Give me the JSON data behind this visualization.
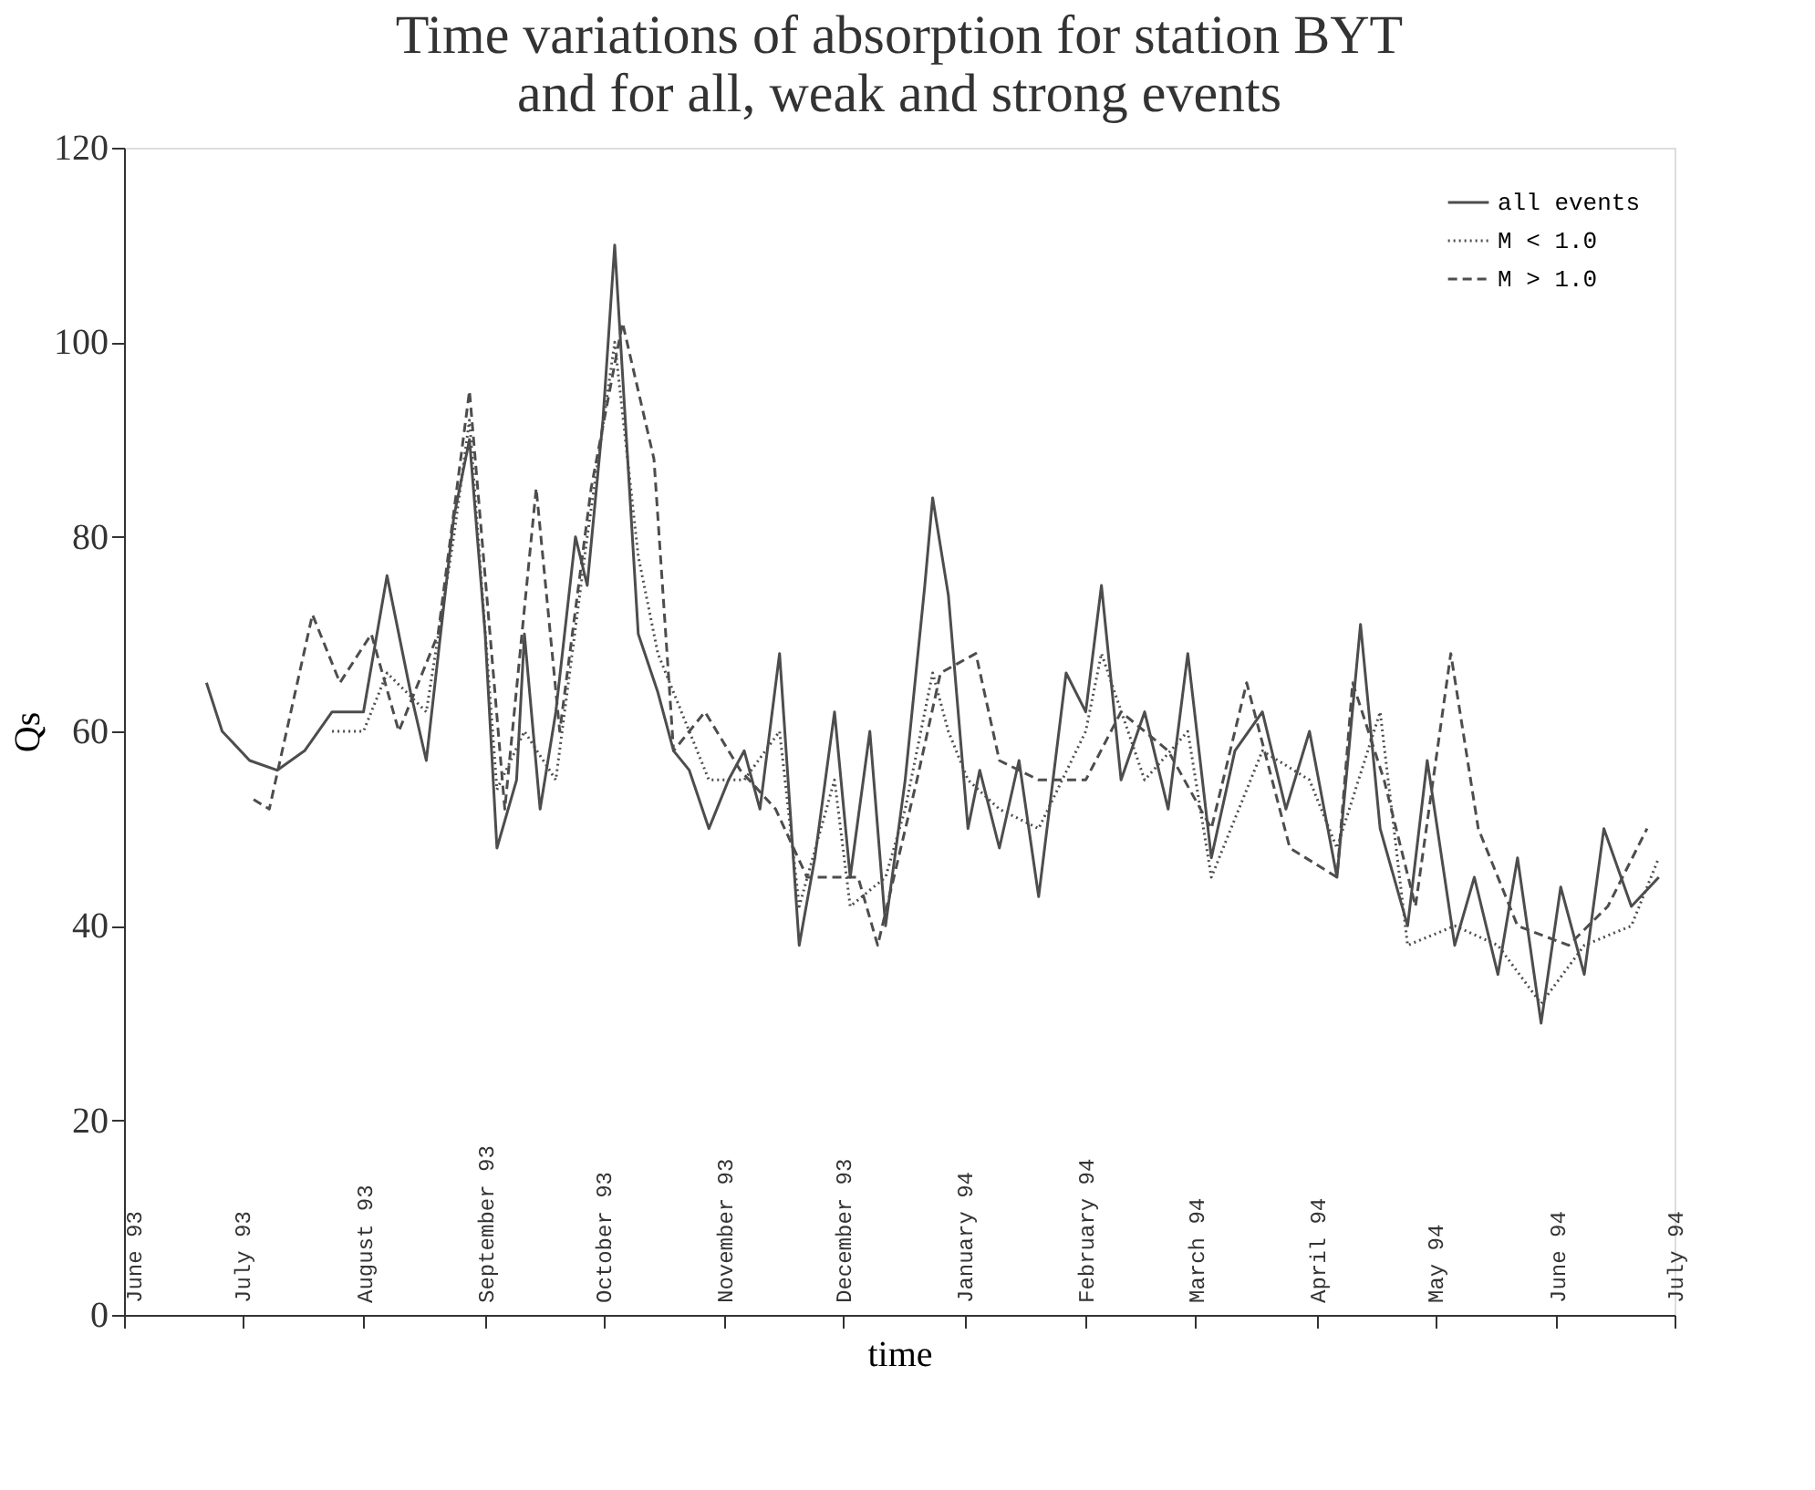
{
  "chart_data": {
    "type": "line",
    "title": "Time variations of absorption for station BYT\nand for all, weak and strong events",
    "xlabel": "time",
    "ylabel": "Qs",
    "xlim": [
      "1993-06-01",
      "1994-07-01"
    ],
    "xticks": [
      {
        "value": "1993-06-01",
        "label": "June 93"
      },
      {
        "value": "1993-07-01",
        "label": "July 93"
      },
      {
        "value": "1993-08-01",
        "label": "August 93"
      },
      {
        "value": "1993-09-01",
        "label": "September 93"
      },
      {
        "value": "1993-10-01",
        "label": "October 93"
      },
      {
        "value": "1993-11-01",
        "label": "November 93"
      },
      {
        "value": "1993-12-01",
        "label": "December 93"
      },
      {
        "value": "1994-01-01",
        "label": "January 94"
      },
      {
        "value": "1994-02-01",
        "label": "February 94"
      },
      {
        "value": "1994-03-01",
        "label": "March 94"
      },
      {
        "value": "1994-04-01",
        "label": "April 94"
      },
      {
        "value": "1994-05-01",
        "label": "May 94"
      },
      {
        "value": "1994-06-01",
        "label": "June 94"
      },
      {
        "value": "1994-07-01",
        "label": "July 94"
      }
    ],
    "ylim": [
      0,
      120
    ],
    "yticks": [
      0,
      20,
      40,
      60,
      80,
      100,
      120
    ],
    "grid": false,
    "legend": "top right",
    "marker": "none",
    "series": [
      {
        "name": "all events",
        "color": "#4d4d4d",
        "line_style": "solid",
        "x": [
          "1993-06-22",
          "1993-06-26",
          "1993-07-03",
          "1993-07-10",
          "1993-07-17",
          "1993-07-24",
          "1993-08-01",
          "1993-08-07",
          "1993-08-13",
          "1993-08-17",
          "1993-08-24",
          "1993-08-28",
          "1993-09-01",
          "1993-09-04",
          "1993-09-09",
          "1993-09-11",
          "1993-09-15",
          "1993-09-19",
          "1993-09-24",
          "1993-09-27",
          "1993-10-01",
          "1993-10-04",
          "1993-10-07",
          "1993-10-10",
          "1993-10-15",
          "1993-10-19",
          "1993-10-23",
          "1993-10-28",
          "1993-11-02",
          "1993-11-06",
          "1993-11-10",
          "1993-11-15",
          "1993-11-20",
          "1993-11-24",
          "1993-11-29",
          "1993-12-03",
          "1993-12-08",
          "1993-12-12",
          "1993-12-17",
          "1993-12-22",
          "1993-12-24",
          "1993-12-28",
          "1994-01-02",
          "1994-01-05",
          "1994-01-10",
          "1994-01-15",
          "1994-01-20",
          "1994-01-27",
          "1994-02-01",
          "1994-02-05",
          "1994-02-10",
          "1994-02-16",
          "1994-02-22",
          "1994-02-27",
          "1994-03-05",
          "1994-03-11",
          "1994-03-18",
          "1994-03-24",
          "1994-03-30",
          "1994-04-06",
          "1994-04-12",
          "1994-04-17",
          "1994-04-24",
          "1994-04-29",
          "1994-05-06",
          "1994-05-11",
          "1994-05-17",
          "1994-05-22",
          "1994-05-28",
          "1994-06-02",
          "1994-06-08",
          "1994-06-13",
          "1994-06-20",
          "1994-06-27"
        ],
        "values": [
          65,
          60,
          57,
          56,
          58,
          62,
          62,
          76,
          64,
          57,
          82,
          90,
          70,
          48,
          55,
          70,
          52,
          62,
          80,
          75,
          92,
          110,
          90,
          70,
          64,
          58,
          56,
          50,
          55,
          58,
          52,
          68,
          38,
          47,
          62,
          45,
          60,
          40,
          55,
          75,
          84,
          74,
          50,
          56,
          48,
          57,
          43,
          66,
          62,
          75,
          55,
          62,
          52,
          68,
          47,
          58,
          62,
          52,
          60,
          45,
          71,
          50,
          40,
          57,
          38,
          45,
          35,
          47,
          30,
          44,
          35,
          50,
          42,
          45
        ]
      },
      {
        "name": "M < 1.0",
        "color": "#4d4d4d",
        "line_style": "dotted",
        "x": [
          "1993-07-24",
          "1993-08-01",
          "1993-08-07",
          "1993-08-17",
          "1993-08-24",
          "1993-08-28",
          "1993-09-04",
          "1993-09-11",
          "1993-09-19",
          "1993-09-27",
          "1993-10-04",
          "1993-10-10",
          "1993-10-15",
          "1993-10-23",
          "1993-10-28",
          "1993-11-06",
          "1993-11-15",
          "1993-11-20",
          "1993-11-29",
          "1993-12-03",
          "1993-12-12",
          "1993-12-17",
          "1993-12-24",
          "1993-12-28",
          "1994-01-02",
          "1994-01-10",
          "1994-01-20",
          "1994-02-01",
          "1994-02-05",
          "1994-02-16",
          "1994-02-27",
          "1994-03-05",
          "1994-03-18",
          "1994-03-30",
          "1994-04-06",
          "1994-04-17",
          "1994-04-24",
          "1994-05-06",
          "1994-05-17",
          "1994-05-28",
          "1994-06-08",
          "1994-06-20",
          "1994-06-27"
        ],
        "values": [
          60,
          60,
          66,
          62,
          80,
          92,
          54,
          60,
          55,
          80,
          100,
          78,
          68,
          60,
          55,
          55,
          60,
          42,
          55,
          42,
          45,
          52,
          66,
          60,
          55,
          52,
          50,
          60,
          68,
          55,
          60,
          45,
          58,
          55,
          48,
          62,
          38,
          40,
          38,
          32,
          38,
          40,
          47
        ]
      },
      {
        "name": "M > 1.0",
        "color": "#4d4d4d",
        "line_style": "dashed",
        "x": [
          "1993-07-04",
          "1993-07-08",
          "1993-07-19",
          "1993-07-26",
          "1993-08-03",
          "1993-08-10",
          "1993-08-20",
          "1993-08-28",
          "1993-09-06",
          "1993-09-14",
          "1993-09-20",
          "1993-09-28",
          "1993-10-06",
          "1993-10-14",
          "1993-10-19",
          "1993-10-27",
          "1993-11-05",
          "1993-11-14",
          "1993-11-22",
          "1993-12-05",
          "1993-12-10",
          "1993-12-20",
          "1993-12-26",
          "1994-01-04",
          "1994-01-10",
          "1994-01-20",
          "1994-02-01",
          "1994-02-10",
          "1994-02-22",
          "1994-03-05",
          "1994-03-14",
          "1994-03-25",
          "1994-04-06",
          "1994-04-10",
          "1994-04-18",
          "1994-04-26",
          "1994-05-05",
          "1994-05-12",
          "1994-05-22",
          "1994-06-04",
          "1994-06-14",
          "1994-06-24"
        ],
        "values": [
          53,
          52,
          72,
          65,
          70,
          60,
          70,
          95,
          52,
          85,
          60,
          85,
          102,
          88,
          58,
          62,
          56,
          52,
          45,
          45,
          38,
          55,
          66,
          68,
          57,
          55,
          55,
          62,
          58,
          50,
          65,
          48,
          45,
          65,
          55,
          42,
          68,
          50,
          40,
          38,
          42,
          50
        ]
      }
    ]
  }
}
